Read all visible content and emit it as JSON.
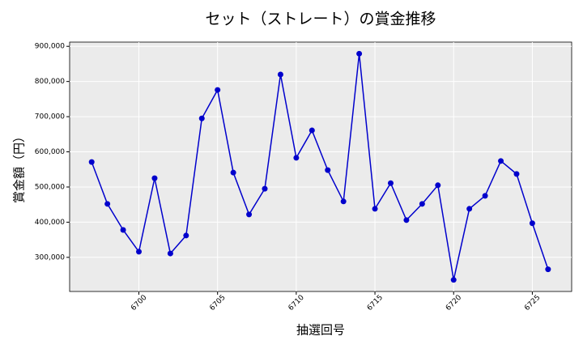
{
  "chart_data": {
    "type": "line",
    "title": "セット（ストレート）の賞金推移",
    "x_label": "抽選回号",
    "y_label": "賞金額（円）",
    "x": [
      6697,
      6698,
      6699,
      6700,
      6701,
      6702,
      6703,
      6704,
      6705,
      6706,
      6707,
      6708,
      6709,
      6710,
      6711,
      6712,
      6713,
      6714,
      6715,
      6716,
      6717,
      6718,
      6719,
      6720,
      6721,
      6722,
      6723,
      6724,
      6725,
      6726
    ],
    "series": [
      {
        "name": "賞金額",
        "color": "#0000cc",
        "values": [
          571000,
          452000,
          378000,
          316000,
          525000,
          311000,
          362000,
          695000,
          776000,
          541000,
          422000,
          495000,
          820000,
          583000,
          661000,
          548000,
          459000,
          879000,
          438000,
          511000,
          406000,
          452000,
          505000,
          236000,
          438000,
          475000,
          574000,
          537000,
          397000,
          266000
        ]
      }
    ],
    "xlim": [
      6695.6,
      6727.5
    ],
    "xticks": [
      6700,
      6705,
      6710,
      6715,
      6720,
      6725
    ],
    "ylim": [
      203000,
      912000
    ],
    "yticks": [
      {
        "value": 300000,
        "label": "300,000"
      },
      {
        "value": 400000,
        "label": "400,000"
      },
      {
        "value": 500000,
        "label": "500,000"
      },
      {
        "value": 600000,
        "label": "600,000"
      },
      {
        "value": 700000,
        "label": "700,000"
      },
      {
        "value": 800000,
        "label": "800,000"
      },
      {
        "value": 900000,
        "label": "900,000"
      }
    ],
    "grid": true
  }
}
